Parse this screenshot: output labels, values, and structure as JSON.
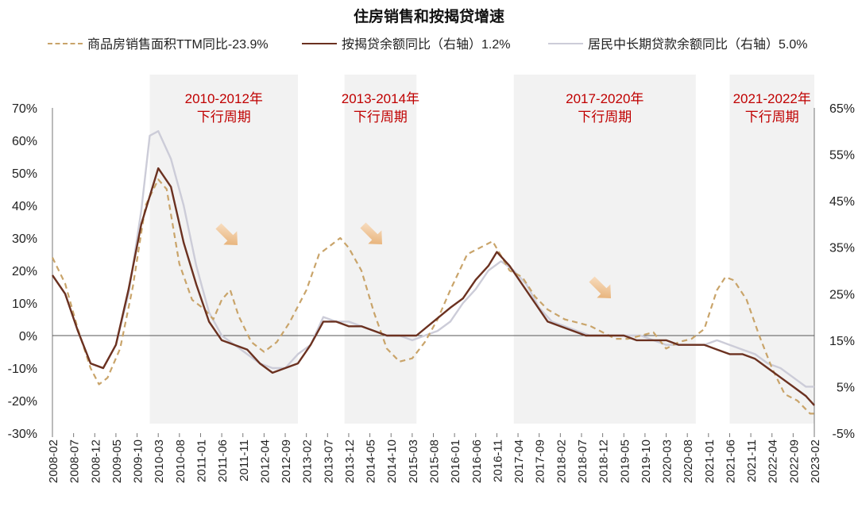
{
  "chart_data": {
    "type": "line",
    "title": "住房销售和按揭贷增速",
    "x_ticks": [
      "2008-02",
      "2008-07",
      "2008-12",
      "2009-05",
      "2009-10",
      "2010-03",
      "2010-08",
      "2011-01",
      "2011-06",
      "2011-11",
      "2012-04",
      "2012-09",
      "2013-02",
      "2013-07",
      "2013-12",
      "2014-05",
      "2014-10",
      "2015-03",
      "2015-08",
      "2016-01",
      "2016-06",
      "2016-11",
      "2017-04",
      "2017-09",
      "2018-02",
      "2018-07",
      "2018-12",
      "2019-05",
      "2019-10",
      "2020-03",
      "2020-08",
      "2021-01",
      "2021-06",
      "2021-11",
      "2022-04",
      "2022-09",
      "2023-02"
    ],
    "y_left": {
      "min": -30,
      "max": 70,
      "step": 10,
      "labels": [
        "70%",
        "60%",
        "50%",
        "40%",
        "30%",
        "20%",
        "10%",
        "0%",
        "-10%",
        "-20%",
        "-30%"
      ]
    },
    "y_right": {
      "min": -5,
      "max": 65,
      "step": 10,
      "labels": [
        "65%",
        "55%",
        "45%",
        "35%",
        "25%",
        "15%",
        "5%",
        "-5%"
      ]
    },
    "shaded_periods": [
      {
        "start": "2010-01",
        "end": "2012-12",
        "label_line1": "2010-2012年",
        "label_line2": "下行周期"
      },
      {
        "start": "2013-11",
        "end": "2015-04",
        "label_line1": "2013-2014年",
        "label_line2": "下行周期"
      },
      {
        "start": "2017-03",
        "end": "2020-10",
        "label_line1": "2017-2020年",
        "label_line2": "下行周期"
      },
      {
        "start": "2021-06",
        "end": "2023-02",
        "label_line1": "2021-2022年",
        "label_line2": "下行周期"
      }
    ],
    "series": [
      {
        "name": "商品房销售面积TTM同比",
        "latest": "-23.9%",
        "axis": "left",
        "color": "#C9A46A",
        "dash": true,
        "points": [
          [
            "2008-02",
            24
          ],
          [
            "2008-05",
            16
          ],
          [
            "2008-08",
            2
          ],
          [
            "2008-11",
            -10
          ],
          [
            "2009-01",
            -15
          ],
          [
            "2009-03",
            -13
          ],
          [
            "2009-06",
            -4
          ],
          [
            "2009-09",
            15
          ],
          [
            "2009-12",
            40
          ],
          [
            "2010-03",
            48
          ],
          [
            "2010-05",
            45
          ],
          [
            "2010-08",
            22
          ],
          [
            "2010-11",
            11
          ],
          [
            "2011-02",
            8
          ],
          [
            "2011-04",
            5
          ],
          [
            "2011-06",
            11
          ],
          [
            "2011-08",
            14
          ],
          [
            "2011-10",
            6
          ],
          [
            "2012-01",
            -2
          ],
          [
            "2012-04",
            -5
          ],
          [
            "2012-07",
            -2
          ],
          [
            "2012-10",
            4
          ],
          [
            "2013-02",
            14
          ],
          [
            "2013-05",
            25
          ],
          [
            "2013-08",
            28
          ],
          [
            "2013-10",
            30
          ],
          [
            "2013-12",
            27
          ],
          [
            "2014-03",
            20
          ],
          [
            "2014-06",
            7
          ],
          [
            "2014-09",
            -4
          ],
          [
            "2014-12",
            -8
          ],
          [
            "2015-03",
            -7
          ],
          [
            "2015-06",
            -2
          ],
          [
            "2015-09",
            5
          ],
          [
            "2015-12",
            14
          ],
          [
            "2016-04",
            25
          ],
          [
            "2016-07",
            27
          ],
          [
            "2016-10",
            29
          ],
          [
            "2017-02",
            20
          ],
          [
            "2017-05",
            18
          ],
          [
            "2017-08",
            12
          ],
          [
            "2017-11",
            8
          ],
          [
            "2018-03",
            5
          ],
          [
            "2018-06",
            4
          ],
          [
            "2018-09",
            3
          ],
          [
            "2018-12",
            1
          ],
          [
            "2019-03",
            -1
          ],
          [
            "2019-06",
            -1
          ],
          [
            "2019-09",
            0
          ],
          [
            "2019-12",
            1
          ],
          [
            "2020-03",
            -4
          ],
          [
            "2020-06",
            -2
          ],
          [
            "2020-09",
            -1
          ],
          [
            "2020-12",
            2
          ],
          [
            "2021-03",
            14
          ],
          [
            "2021-05",
            18
          ],
          [
            "2021-07",
            17
          ],
          [
            "2021-10",
            11
          ],
          [
            "2022-01",
            0
          ],
          [
            "2022-04",
            -10
          ],
          [
            "2022-07",
            -18
          ],
          [
            "2022-10",
            -20
          ],
          [
            "2023-01",
            -24
          ],
          [
            "2023-02",
            -24
          ]
        ]
      },
      {
        "name": "按揭贷余额同比（右轴）",
        "latest": "1.2%",
        "axis": "right",
        "color": "#6B3120",
        "dash": false,
        "points": [
          [
            "2008-02",
            29
          ],
          [
            "2008-05",
            25
          ],
          [
            "2008-08",
            17
          ],
          [
            "2008-11",
            10
          ],
          [
            "2009-02",
            9
          ],
          [
            "2009-05",
            14
          ],
          [
            "2009-08",
            26
          ],
          [
            "2009-11",
            40
          ],
          [
            "2010-03",
            52
          ],
          [
            "2010-06",
            48
          ],
          [
            "2010-09",
            36
          ],
          [
            "2010-12",
            27
          ],
          [
            "2011-03",
            19
          ],
          [
            "2011-06",
            15
          ],
          [
            "2011-09",
            14
          ],
          [
            "2011-12",
            13
          ],
          [
            "2012-03",
            10
          ],
          [
            "2012-06",
            8
          ],
          [
            "2012-09",
            9
          ],
          [
            "2012-12",
            10
          ],
          [
            "2013-03",
            14
          ],
          [
            "2013-06",
            19
          ],
          [
            "2013-09",
            19
          ],
          [
            "2013-12",
            18
          ],
          [
            "2014-03",
            18
          ],
          [
            "2014-06",
            17
          ],
          [
            "2014-09",
            16
          ],
          [
            "2014-12",
            16
          ],
          [
            "2015-04",
            16
          ],
          [
            "2015-08",
            19
          ],
          [
            "2015-12",
            22
          ],
          [
            "2016-03",
            24
          ],
          [
            "2016-06",
            28
          ],
          [
            "2016-09",
            31
          ],
          [
            "2016-11",
            34
          ],
          [
            "2017-02",
            31
          ],
          [
            "2017-05",
            27
          ],
          [
            "2017-08",
            23
          ],
          [
            "2017-11",
            19
          ],
          [
            "2018-02",
            18
          ],
          [
            "2018-05",
            17
          ],
          [
            "2018-08",
            16
          ],
          [
            "2018-11",
            16
          ],
          [
            "2019-02",
            16
          ],
          [
            "2019-05",
            16
          ],
          [
            "2019-08",
            15
          ],
          [
            "2019-11",
            15
          ],
          [
            "2020-03",
            15
          ],
          [
            "2020-06",
            14
          ],
          [
            "2020-09",
            14
          ],
          [
            "2020-12",
            14
          ],
          [
            "2021-03",
            13
          ],
          [
            "2021-06",
            12
          ],
          [
            "2021-09",
            12
          ],
          [
            "2021-12",
            11
          ],
          [
            "2022-03",
            9
          ],
          [
            "2022-06",
            7
          ],
          [
            "2022-09",
            5
          ],
          [
            "2022-12",
            3
          ],
          [
            "2023-02",
            1
          ]
        ]
      },
      {
        "name": "居民中长期贷款余额同比（右轴）",
        "latest": "5.0%",
        "axis": "right",
        "color": "#CCCCD8",
        "dash": false,
        "points": [
          [
            "2008-02",
            29
          ],
          [
            "2008-05",
            25
          ],
          [
            "2008-08",
            17
          ],
          [
            "2008-11",
            10
          ],
          [
            "2009-02",
            9
          ],
          [
            "2009-05",
            14
          ],
          [
            "2009-08",
            25
          ],
          [
            "2009-11",
            43
          ],
          [
            "2010-01",
            59
          ],
          [
            "2010-03",
            60
          ],
          [
            "2010-06",
            54
          ],
          [
            "2010-09",
            44
          ],
          [
            "2010-12",
            31
          ],
          [
            "2011-03",
            21
          ],
          [
            "2011-06",
            16
          ],
          [
            "2011-09",
            14
          ],
          [
            "2011-12",
            12
          ],
          [
            "2012-03",
            10
          ],
          [
            "2012-06",
            9
          ],
          [
            "2012-09",
            9
          ],
          [
            "2012-12",
            12
          ],
          [
            "2013-03",
            14
          ],
          [
            "2013-06",
            20
          ],
          [
            "2013-09",
            19
          ],
          [
            "2013-12",
            19
          ],
          [
            "2014-03",
            18
          ],
          [
            "2014-06",
            17
          ],
          [
            "2014-09",
            16
          ],
          [
            "2014-12",
            16
          ],
          [
            "2015-03",
            15
          ],
          [
            "2015-06",
            16
          ],
          [
            "2015-09",
            17
          ],
          [
            "2015-12",
            19
          ],
          [
            "2016-03",
            23
          ],
          [
            "2016-06",
            26
          ],
          [
            "2016-09",
            30
          ],
          [
            "2016-12",
            32
          ],
          [
            "2017-03",
            30
          ],
          [
            "2017-06",
            27
          ],
          [
            "2017-09",
            22
          ],
          [
            "2017-12",
            19
          ],
          [
            "2018-03",
            18
          ],
          [
            "2018-06",
            17
          ],
          [
            "2018-09",
            16
          ],
          [
            "2018-12",
            16
          ],
          [
            "2019-03",
            16
          ],
          [
            "2019-06",
            16
          ],
          [
            "2019-09",
            16
          ],
          [
            "2019-12",
            15
          ],
          [
            "2020-03",
            14
          ],
          [
            "2020-06",
            14
          ],
          [
            "2020-09",
            14
          ],
          [
            "2020-12",
            14
          ],
          [
            "2021-03",
            15
          ],
          [
            "2021-06",
            14
          ],
          [
            "2021-09",
            13
          ],
          [
            "2021-12",
            12
          ],
          [
            "2022-03",
            10
          ],
          [
            "2022-06",
            9
          ],
          [
            "2022-09",
            7
          ],
          [
            "2022-12",
            5
          ],
          [
            "2023-02",
            5
          ]
        ]
      }
    ]
  }
}
